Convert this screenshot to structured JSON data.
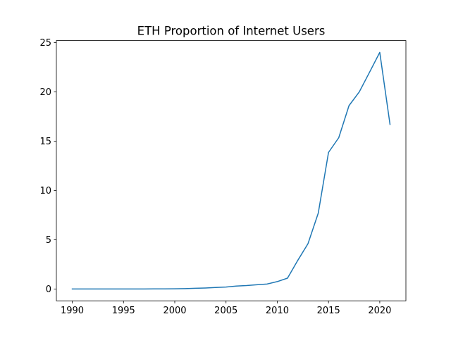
{
  "chart_data": {
    "type": "line",
    "title": "ETH Proportion of Internet Users",
    "xlabel": "",
    "ylabel": "",
    "xlim": [
      1988.45,
      2022.55
    ],
    "ylim": [
      -1.2,
      25.2
    ],
    "x_ticks": [
      "1990",
      "1995",
      "2000",
      "2005",
      "2010",
      "2015",
      "2020"
    ],
    "y_ticks": [
      "0",
      "5",
      "10",
      "15",
      "20",
      "25"
    ],
    "grid": false,
    "legend": "none",
    "series": [
      {
        "color": "#1f77b4",
        "x": [
          1990,
          1991,
          1992,
          1993,
          1994,
          1995,
          1996,
          1997,
          1998,
          1999,
          2000,
          2001,
          2002,
          2003,
          2004,
          2005,
          2006,
          2007,
          2008,
          2009,
          2010,
          2011,
          2012,
          2013,
          2014,
          2015,
          2016,
          2017,
          2018,
          2019,
          2020,
          2021
        ],
        "y": [
          0,
          0,
          0,
          0,
          0,
          0,
          0,
          0.005,
          0.01,
          0.015,
          0.02,
          0.04,
          0.07,
          0.1,
          0.15,
          0.2,
          0.3,
          0.35,
          0.43,
          0.5,
          0.75,
          1.1,
          2.9,
          4.6,
          7.7,
          13.85,
          15.35,
          18.6,
          19.99,
          21.98,
          24.0,
          16.7
        ]
      }
    ]
  }
}
